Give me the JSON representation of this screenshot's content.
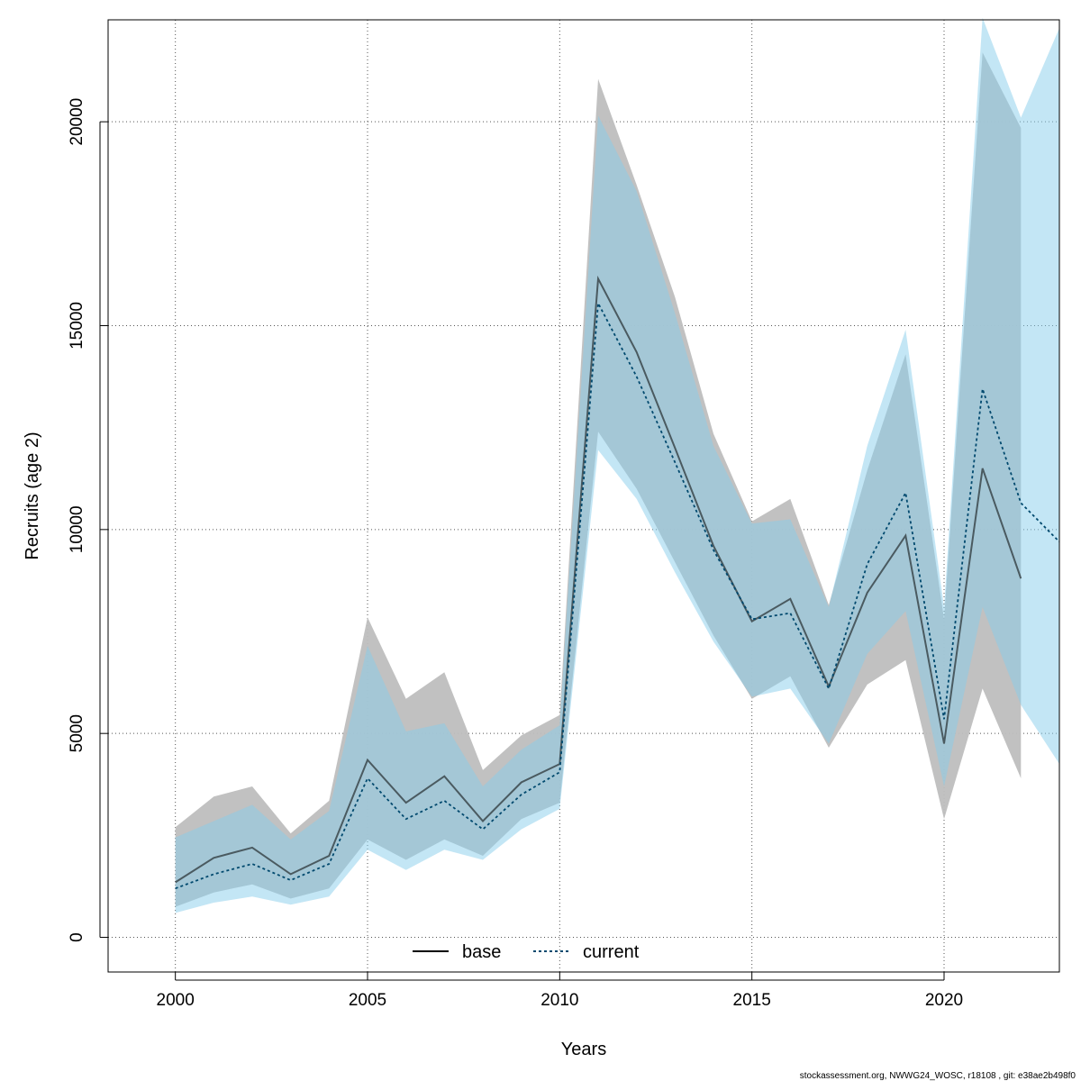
{
  "chart_data": {
    "type": "line",
    "xlabel": "Years",
    "ylabel": "Recruits (age 2)",
    "xlim": [
      1998.25,
      2023
    ],
    "ylim": [
      -850,
      22500
    ],
    "x_ticks": [
      "2000",
      "2005",
      "2010",
      "2015",
      "2020"
    ],
    "y_ticks": [
      "0",
      "5000",
      "10000",
      "15000",
      "20000"
    ],
    "grid": true,
    "legend_position": "bottom-center",
    "series": [
      {
        "name": "base",
        "line_style": "solid",
        "color": "#000000",
        "band_color": "#bebebe",
        "x": [
          2000,
          2001,
          2002,
          2003,
          2004,
          2005,
          2006,
          2007,
          2008,
          2009,
          2010,
          2011,
          2012,
          2013,
          2014,
          2015,
          2016,
          2017,
          2018,
          2019,
          2020,
          2021,
          2022
        ],
        "values": [
          1350,
          1950,
          2200,
          1550,
          2000,
          4350,
          3300,
          3950,
          2850,
          3800,
          4250,
          16150,
          14350,
          12000,
          9600,
          7750,
          8300,
          6150,
          8450,
          9850,
          4750,
          11500,
          8800
        ],
        "lower": [
          750,
          1100,
          1300,
          950,
          1200,
          2400,
          1900,
          2400,
          2000,
          2900,
          3300,
          12400,
          11000,
          9200,
          7400,
          5850,
          6400,
          4650,
          6200,
          6800,
          2900,
          6100,
          3900
        ],
        "upper": [
          2700,
          3450,
          3700,
          2550,
          3350,
          7850,
          5850,
          6500,
          4100,
          4950,
          5450,
          21050,
          18450,
          15700,
          12350,
          10200,
          10750,
          8150,
          11450,
          14300,
          7800,
          21700,
          19850
        ]
      },
      {
        "name": "current",
        "line_style": "dotted",
        "color": "#00496e",
        "band_color": "#87ceeb",
        "x": [
          2000,
          2001,
          2002,
          2003,
          2004,
          2005,
          2006,
          2007,
          2008,
          2009,
          2010,
          2011,
          2012,
          2013,
          2014,
          2015,
          2016,
          2017,
          2018,
          2019,
          2020,
          2021,
          2022,
          2023
        ],
        "values": [
          1200,
          1550,
          1800,
          1400,
          1800,
          3900,
          2900,
          3350,
          2650,
          3500,
          4050,
          15550,
          13750,
          11650,
          9500,
          7800,
          7950,
          6100,
          9150,
          10900,
          5350,
          13450,
          10650,
          9700
        ],
        "lower": [
          600,
          850,
          1000,
          800,
          1000,
          2150,
          1650,
          2150,
          1900,
          2650,
          3150,
          11950,
          10750,
          8950,
          7250,
          5900,
          6100,
          4750,
          6950,
          8000,
          3700,
          8100,
          5700,
          4250
        ],
        "upper": [
          2450,
          2850,
          3250,
          2400,
          3100,
          7150,
          5050,
          5250,
          3700,
          4600,
          5200,
          20150,
          18300,
          15300,
          12050,
          10150,
          10250,
          8100,
          12050,
          14900,
          8100,
          22550,
          20100,
          22300
        ]
      }
    ]
  },
  "footer": {
    "text": "stockassessment.org, NWWG24_WOSC, r18108 , git: e38ae2b498f0"
  }
}
